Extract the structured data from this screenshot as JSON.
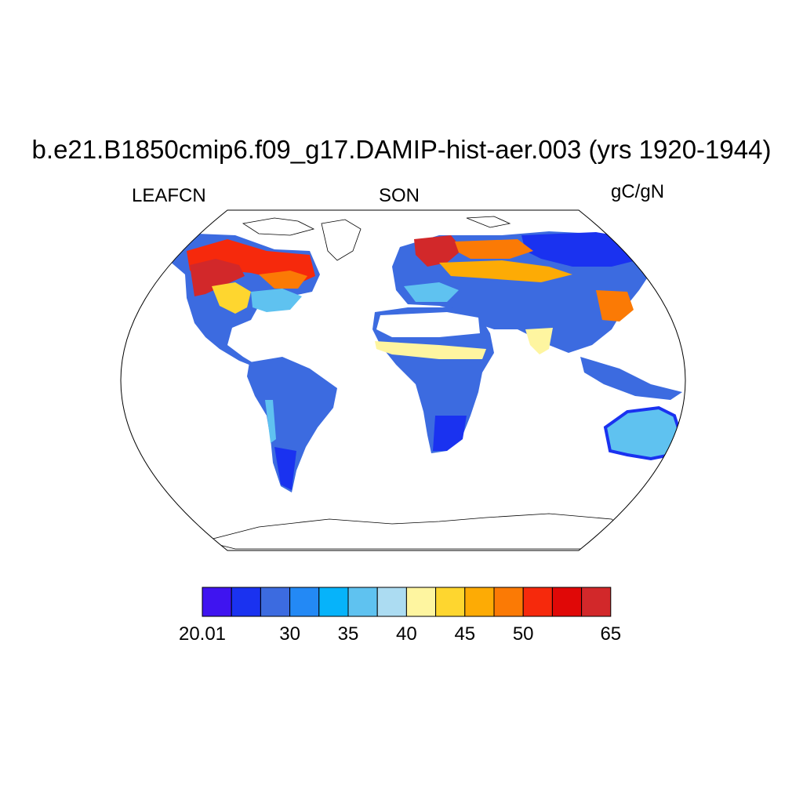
{
  "title": "b.e21.B1850cmip6.f09_g17.DAMIP-hist-aer.003 (yrs 1920-1944)",
  "left_label": "LEAFCN",
  "center_label": "SON",
  "right_label": "gC/gN",
  "projection": "Robinson",
  "colorbar": {
    "colors": [
      "#3f14f0",
      "#1a32f0",
      "#3c6be0",
      "#2389f5",
      "#06b3fa",
      "#5fc2f0",
      "#acdcf2",
      "#fef5a0",
      "#fed62f",
      "#fdab05",
      "#fb7a05",
      "#f6290c",
      "#e00807",
      "#d2282a"
    ],
    "tick_labels": [
      "20.01",
      "30",
      "35",
      "40",
      "45",
      "50",
      "65"
    ],
    "tick_boundary_index": [
      0,
      3,
      5,
      7,
      9,
      11,
      14
    ]
  }
}
